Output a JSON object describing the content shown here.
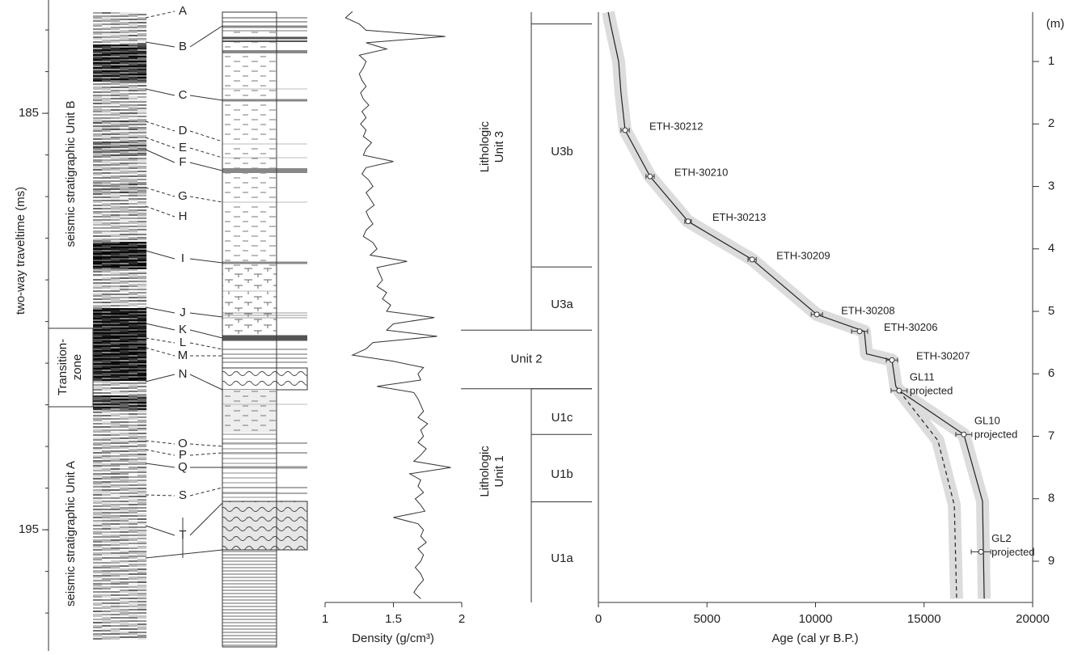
{
  "chart_data": [
    {
      "type": "seismic",
      "y_label": "two-way traveltime (ms)",
      "ylim": [
        182.28,
        197.91
      ],
      "yticks": [
        185,
        195
      ],
      "minor_yticks": [
        183,
        184,
        185,
        186,
        187,
        188,
        189,
        190,
        191,
        192,
        193,
        194,
        195,
        196,
        197
      ],
      "units": {
        "upper": "seismic stratigraphic Unit B",
        "transition": [
          "Transition-",
          "zone"
        ],
        "lower": "seismic stratigraphic Unit A"
      },
      "reflectors": [
        "A",
        "B",
        "C",
        "D",
        "E",
        "F",
        "G",
        "H",
        "I",
        "J",
        "K",
        "L",
        "M",
        "N",
        "O",
        "P",
        "Q",
        "S",
        "T"
      ]
    },
    {
      "type": "line",
      "x_label": "Density (g/cm³)",
      "xlim": [
        1,
        2
      ],
      "xticks": [
        1,
        1.5,
        2
      ],
      "ylim": [
        0.21,
        9.66
      ],
      "color": "#333333",
      "depth": [
        0.2,
        0.3,
        0.4,
        0.5,
        0.6,
        0.7,
        0.8,
        0.9,
        1.0,
        1.1,
        1.2,
        1.3,
        1.4,
        1.5,
        1.6,
        1.7,
        1.8,
        1.9,
        2.0,
        2.1,
        2.2,
        2.3,
        2.4,
        2.5,
        2.6,
        2.7,
        2.8,
        2.9,
        3.0,
        3.1,
        3.2,
        3.3,
        3.4,
        3.5,
        3.6,
        3.7,
        3.8,
        3.9,
        4.0,
        4.1,
        4.2,
        4.3,
        4.4,
        4.5,
        4.6,
        4.7,
        4.8,
        4.9,
        5.0,
        5.1,
        5.2,
        5.3,
        5.4,
        5.5,
        5.6,
        5.7,
        5.8,
        5.9,
        6.0,
        6.1,
        6.2,
        6.3,
        6.4,
        6.5,
        6.6,
        6.7,
        6.8,
        6.9,
        7.0,
        7.1,
        7.2,
        7.3,
        7.4,
        7.5,
        7.6,
        7.7,
        7.8,
        7.9,
        8.0,
        8.1,
        8.2,
        8.3,
        8.4,
        8.5,
        8.6,
        8.7,
        8.8,
        8.9,
        9.0,
        9.1,
        9.2,
        9.3,
        9.4,
        9.5,
        9.6
      ],
      "values": [
        1.2,
        1.15,
        1.25,
        1.3,
        1.88,
        1.3,
        1.45,
        1.25,
        1.3,
        1.28,
        1.25,
        1.27,
        1.3,
        1.26,
        1.28,
        1.32,
        1.27,
        1.3,
        1.26,
        1.3,
        1.28,
        1.34,
        1.3,
        1.28,
        1.5,
        1.3,
        1.27,
        1.32,
        1.35,
        1.3,
        1.33,
        1.36,
        1.3,
        1.32,
        1.35,
        1.3,
        1.28,
        1.35,
        1.38,
        1.33,
        1.6,
        1.38,
        1.4,
        1.42,
        1.38,
        1.45,
        1.42,
        1.48,
        1.45,
        1.8,
        1.5,
        1.45,
        1.82,
        1.35,
        1.3,
        1.2,
        1.5,
        1.72,
        1.68,
        1.7,
        1.38,
        1.65,
        1.68,
        1.7,
        1.72,
        1.68,
        1.75,
        1.7,
        1.72,
        1.68,
        1.74,
        1.7,
        1.65,
        1.92,
        1.62,
        1.7,
        1.68,
        1.72,
        1.66,
        1.7,
        1.73,
        1.5,
        1.68,
        1.72,
        1.7,
        1.74,
        1.68,
        1.72,
        1.7,
        1.66,
        1.7,
        1.72,
        1.68,
        1.65,
        1.7
      ]
    },
    {
      "type": "units",
      "ylim": [
        0.21,
        9.66
      ],
      "groups": [
        {
          "label": [
            "Lithologic",
            "Unit 3"
          ],
          "top": 0.21,
          "bottom": 5.3
        },
        {
          "label": [
            "Lithologic",
            "Unit 1"
          ],
          "top": 6.24,
          "bottom": 9.66
        }
      ],
      "units": [
        {
          "name": "U3b",
          "top": 0.4,
          "bottom": 4.29
        },
        {
          "name": "U3a",
          "top": 4.29,
          "bottom": 5.3
        },
        {
          "name": "Unit 2",
          "top": 5.3,
          "bottom": 6.24
        },
        {
          "name": "U1c",
          "top": 6.24,
          "bottom": 6.97
        },
        {
          "name": "U1b",
          "top": 6.97,
          "bottom": 8.05
        },
        {
          "name": "U1a",
          "top": 8.05,
          "bottom": 9.66
        }
      ]
    },
    {
      "type": "scatter",
      "x_label": "Age (cal yr B.P.)",
      "y_label": "(m)",
      "xlim": [
        0,
        20000
      ],
      "xticks": [
        0,
        5000,
        10000,
        15000,
        20000
      ],
      "ylim": [
        0.21,
        9.66
      ],
      "yticks": [
        1,
        2,
        3,
        4,
        5,
        6,
        7,
        8,
        9
      ],
      "labels": [
        [
          "ETH-30212"
        ],
        [
          "ETH-30210"
        ],
        [
          "ETH-30213"
        ],
        [
          "ETH-30209"
        ],
        [
          "ETH-30208"
        ],
        [
          "ETH-30206"
        ],
        [
          "ETH-30207"
        ],
        [
          "GL11",
          "projected"
        ],
        [
          "GL10",
          "projected"
        ],
        [
          "GL2",
          "projected"
        ]
      ],
      "ages": [
        1230,
        2380,
        4130,
        7080,
        10060,
        12030,
        13520,
        13850,
        16830,
        17620
      ],
      "depths": [
        2.1,
        2.84,
        3.56,
        4.17,
        5.05,
        5.32,
        5.78,
        6.27,
        6.97,
        8.85
      ],
      "age_errors": [
        190,
        190,
        150,
        190,
        260,
        370,
        260,
        370,
        370,
        450
      ],
      "model": {
        "ages": [
          450,
          560,
          930,
          1040,
          1230,
          2380,
          4130,
          7080,
          10060,
          12250,
          12350,
          13520,
          13700,
          13850,
          16830,
          17690,
          17770
        ],
        "depths": [
          0.21,
          0.4,
          1.0,
          1.5,
          2.1,
          2.84,
          3.56,
          4.17,
          5.05,
          5.32,
          5.68,
          5.78,
          6.2,
          6.27,
          6.97,
          8.04,
          9.6
        ],
        "color": "#222222"
      },
      "model_dashed": {
        "ages": [
          13850,
          15640,
          16390,
          16500
        ],
        "depths": [
          6.27,
          7.07,
          8.1,
          9.6
        ],
        "color": "#222222"
      },
      "band_color": "#dcdcdc"
    }
  ]
}
